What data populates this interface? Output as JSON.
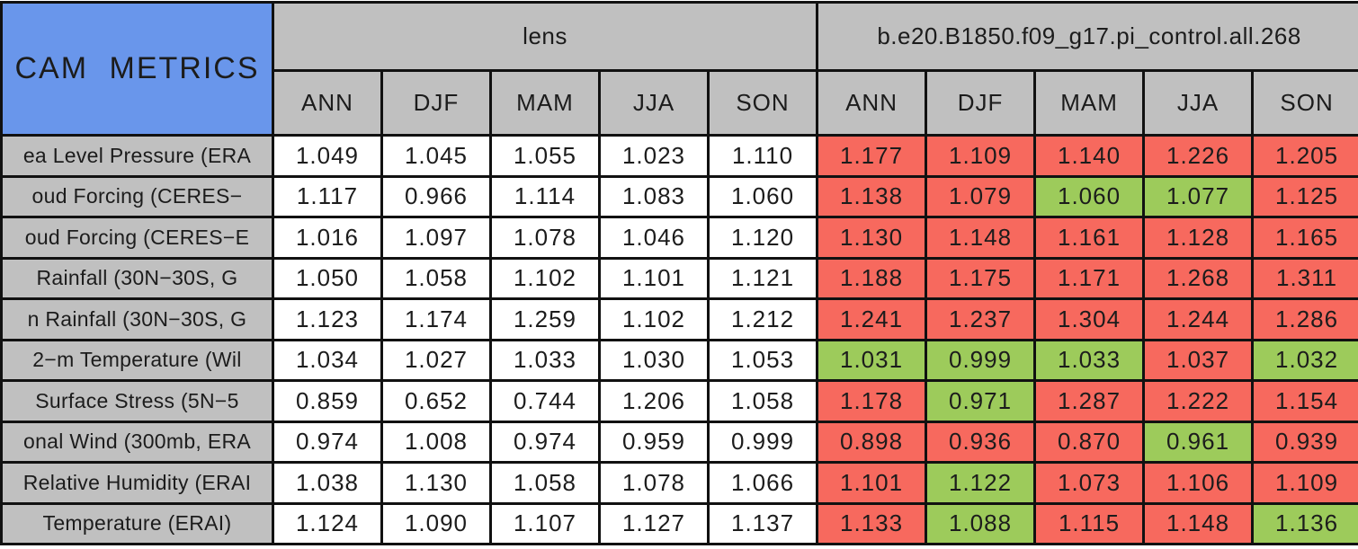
{
  "chart_data": {
    "type": "table",
    "title": "CAM METRICS",
    "column_groups": [
      {
        "label": "lens"
      },
      {
        "label": "b.e20.B1850.f09_g17.pi_control.all.268"
      }
    ],
    "season_columns": [
      "ANN",
      "DJF",
      "MAM",
      "JJA",
      "SON"
    ],
    "cell_color_meaning": {
      "better": "green: closer to 1 than lens",
      "worse": "red: further from 1 than lens"
    },
    "rows": [
      {
        "label": "ea Level Pressure (ERA",
        "lens": [
          "1.049",
          "1.045",
          "1.055",
          "1.023",
          "1.110"
        ],
        "control": [
          "1.177",
          "1.109",
          "1.140",
          "1.226",
          "1.205"
        ],
        "control_flags": [
          "worse",
          "worse",
          "worse",
          "worse",
          "worse"
        ]
      },
      {
        "label": "oud Forcing (CERES−",
        "lens": [
          "1.117",
          "0.966",
          "1.114",
          "1.083",
          "1.060"
        ],
        "control": [
          "1.138",
          "1.079",
          "1.060",
          "1.077",
          "1.125"
        ],
        "control_flags": [
          "worse",
          "worse",
          "better",
          "better",
          "worse"
        ]
      },
      {
        "label": "oud Forcing (CERES−E",
        "lens": [
          "1.016",
          "1.097",
          "1.078",
          "1.046",
          "1.120"
        ],
        "control": [
          "1.130",
          "1.148",
          "1.161",
          "1.128",
          "1.165"
        ],
        "control_flags": [
          "worse",
          "worse",
          "worse",
          "worse",
          "worse"
        ]
      },
      {
        "label": "Rainfall (30N−30S, G",
        "lens": [
          "1.050",
          "1.058",
          "1.102",
          "1.101",
          "1.121"
        ],
        "control": [
          "1.188",
          "1.175",
          "1.171",
          "1.268",
          "1.311"
        ],
        "control_flags": [
          "worse",
          "worse",
          "worse",
          "worse",
          "worse"
        ]
      },
      {
        "label": "n Rainfall (30N−30S, G",
        "lens": [
          "1.123",
          "1.174",
          "1.259",
          "1.102",
          "1.212"
        ],
        "control": [
          "1.241",
          "1.237",
          "1.304",
          "1.244",
          "1.286"
        ],
        "control_flags": [
          "worse",
          "worse",
          "worse",
          "worse",
          "worse"
        ]
      },
      {
        "label": "2−m Temperature (Wil",
        "lens": [
          "1.034",
          "1.027",
          "1.033",
          "1.030",
          "1.053"
        ],
        "control": [
          "1.031",
          "0.999",
          "1.033",
          "1.037",
          "1.032"
        ],
        "control_flags": [
          "better",
          "better",
          "better",
          "worse",
          "better"
        ]
      },
      {
        "label": "Surface Stress (5N−5",
        "lens": [
          "0.859",
          "0.652",
          "0.744",
          "1.206",
          "1.058"
        ],
        "control": [
          "1.178",
          "0.971",
          "1.287",
          "1.222",
          "1.154"
        ],
        "control_flags": [
          "worse",
          "better",
          "worse",
          "worse",
          "worse"
        ]
      },
      {
        "label": "onal Wind (300mb, ERA",
        "lens": [
          "0.974",
          "1.008",
          "0.974",
          "0.959",
          "0.999"
        ],
        "control": [
          "0.898",
          "0.936",
          "0.870",
          "0.961",
          "0.939"
        ],
        "control_flags": [
          "worse",
          "worse",
          "worse",
          "better",
          "worse"
        ]
      },
      {
        "label": "Relative Humidity (ERAI",
        "lens": [
          "1.038",
          "1.130",
          "1.058",
          "1.078",
          "1.066"
        ],
        "control": [
          "1.101",
          "1.122",
          "1.073",
          "1.106",
          "1.109"
        ],
        "control_flags": [
          "worse",
          "better",
          "worse",
          "worse",
          "worse"
        ]
      },
      {
        "label": "Temperature (ERAI)",
        "lens": [
          "1.124",
          "1.090",
          "1.107",
          "1.127",
          "1.137"
        ],
        "control": [
          "1.133",
          "1.088",
          "1.115",
          "1.148",
          "1.136"
        ],
        "control_flags": [
          "worse",
          "better",
          "worse",
          "worse",
          "better"
        ]
      }
    ]
  },
  "colors": {
    "border": "#111111",
    "header_bg": "#c0c0c0",
    "corner_bg": "#6996eb",
    "neutral_bg": "#ffffff",
    "worse_bg": "#f7695e",
    "better_bg": "#9dcb5b",
    "text": "#1c1c1c"
  }
}
